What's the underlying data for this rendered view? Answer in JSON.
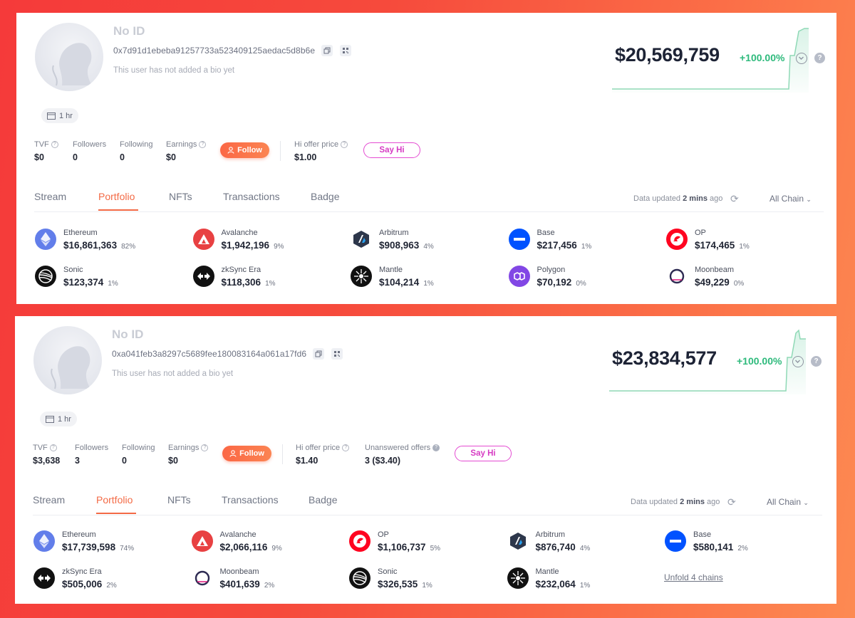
{
  "colors": {
    "accent": "#f36a45",
    "positive": "#2eba7c",
    "say_hi": "#e44bd2"
  },
  "profiles": [
    {
      "name": "No ID",
      "address": "0x7d91d1ebeba91257733a523409125aedac5d8b6e",
      "bio": "This user has not added a bio yet",
      "time_chip": "1 hr",
      "stats": [
        {
          "label": "TVF",
          "value": "$0",
          "help": true
        },
        {
          "label": "Followers",
          "value": "0"
        },
        {
          "label": "Following",
          "value": "0"
        },
        {
          "label": "Earnings",
          "value": "$0",
          "help": true
        }
      ],
      "follow_label": "Follow",
      "hi_offer": {
        "label": "Hi offer price",
        "value": "$1.00"
      },
      "say_hi_label": "Say Hi",
      "net_worth": "$20,569,759",
      "change": "+100.00%",
      "tabs": [
        "Stream",
        "Portfolio",
        "NFTs",
        "Transactions",
        "Badge"
      ],
      "active_tab": "Portfolio",
      "updated_prefix": "Data updated",
      "updated_value": "2 mins",
      "updated_suffix": "ago",
      "chain_filter": "All Chain",
      "chains": [
        {
          "name": "Ethereum",
          "value": "$16,861,363",
          "pct": "82%",
          "icon": "ethereum-icon"
        },
        {
          "name": "Avalanche",
          "value": "$1,942,196",
          "pct": "9%",
          "icon": "avalanche-icon"
        },
        {
          "name": "Arbitrum",
          "value": "$908,963",
          "pct": "4%",
          "icon": "arbitrum-icon"
        },
        {
          "name": "Base",
          "value": "$217,456",
          "pct": "1%",
          "icon": "base-icon"
        },
        {
          "name": "OP",
          "value": "$174,465",
          "pct": "1%",
          "icon": "op-icon"
        },
        {
          "name": "Sonic",
          "value": "$123,374",
          "pct": "1%",
          "icon": "sonic-icon"
        },
        {
          "name": "zkSync Era",
          "value": "$118,306",
          "pct": "1%",
          "icon": "zksync-icon"
        },
        {
          "name": "Mantle",
          "value": "$104,214",
          "pct": "1%",
          "icon": "mantle-icon"
        },
        {
          "name": "Polygon",
          "value": "$70,192",
          "pct": "0%",
          "icon": "polygon-icon"
        },
        {
          "name": "Moonbeam",
          "value": "$49,229",
          "pct": "0%",
          "icon": "moonbeam-icon"
        }
      ]
    },
    {
      "name": "No ID",
      "address": "0xa041feb3a8297c5689fee180083164a061a17fd6",
      "bio": "This user has not added a bio yet",
      "time_chip": "1 hr",
      "stats": [
        {
          "label": "TVF",
          "value": "$3,638",
          "help": true
        },
        {
          "label": "Followers",
          "value": "3"
        },
        {
          "label": "Following",
          "value": "0"
        },
        {
          "label": "Earnings",
          "value": "$0",
          "help": true
        }
      ],
      "follow_label": "Follow",
      "hi_offer": {
        "label": "Hi offer price",
        "value": "$1.40"
      },
      "unanswered": {
        "label": "Unanswered offers",
        "value": "3 ($3.40)"
      },
      "say_hi_label": "Say Hi",
      "net_worth": "$23,834,577",
      "change": "+100.00%",
      "tabs": [
        "Stream",
        "Portfolio",
        "NFTs",
        "Transactions",
        "Badge"
      ],
      "active_tab": "Portfolio",
      "updated_prefix": "Data updated",
      "updated_value": "2 mins",
      "updated_suffix": "ago",
      "chain_filter": "All Chain",
      "chains": [
        {
          "name": "Ethereum",
          "value": "$17,739,598",
          "pct": "74%",
          "icon": "ethereum-icon"
        },
        {
          "name": "Avalanche",
          "value": "$2,066,116",
          "pct": "9%",
          "icon": "avalanche-icon"
        },
        {
          "name": "OP",
          "value": "$1,106,737",
          "pct": "5%",
          "icon": "op-icon"
        },
        {
          "name": "Arbitrum",
          "value": "$876,740",
          "pct": "4%",
          "icon": "arbitrum-icon"
        },
        {
          "name": "Base",
          "value": "$580,141",
          "pct": "2%",
          "icon": "base-icon"
        },
        {
          "name": "zkSync Era",
          "value": "$505,006",
          "pct": "2%",
          "icon": "zksync-icon"
        },
        {
          "name": "Moonbeam",
          "value": "$401,639",
          "pct": "2%",
          "icon": "moonbeam-icon"
        },
        {
          "name": "Sonic",
          "value": "$326,535",
          "pct": "1%",
          "icon": "sonic-icon"
        },
        {
          "name": "Mantle",
          "value": "$232,064",
          "pct": "1%",
          "icon": "mantle-icon"
        }
      ],
      "unfold_label": "Unfold 4 chains"
    }
  ]
}
